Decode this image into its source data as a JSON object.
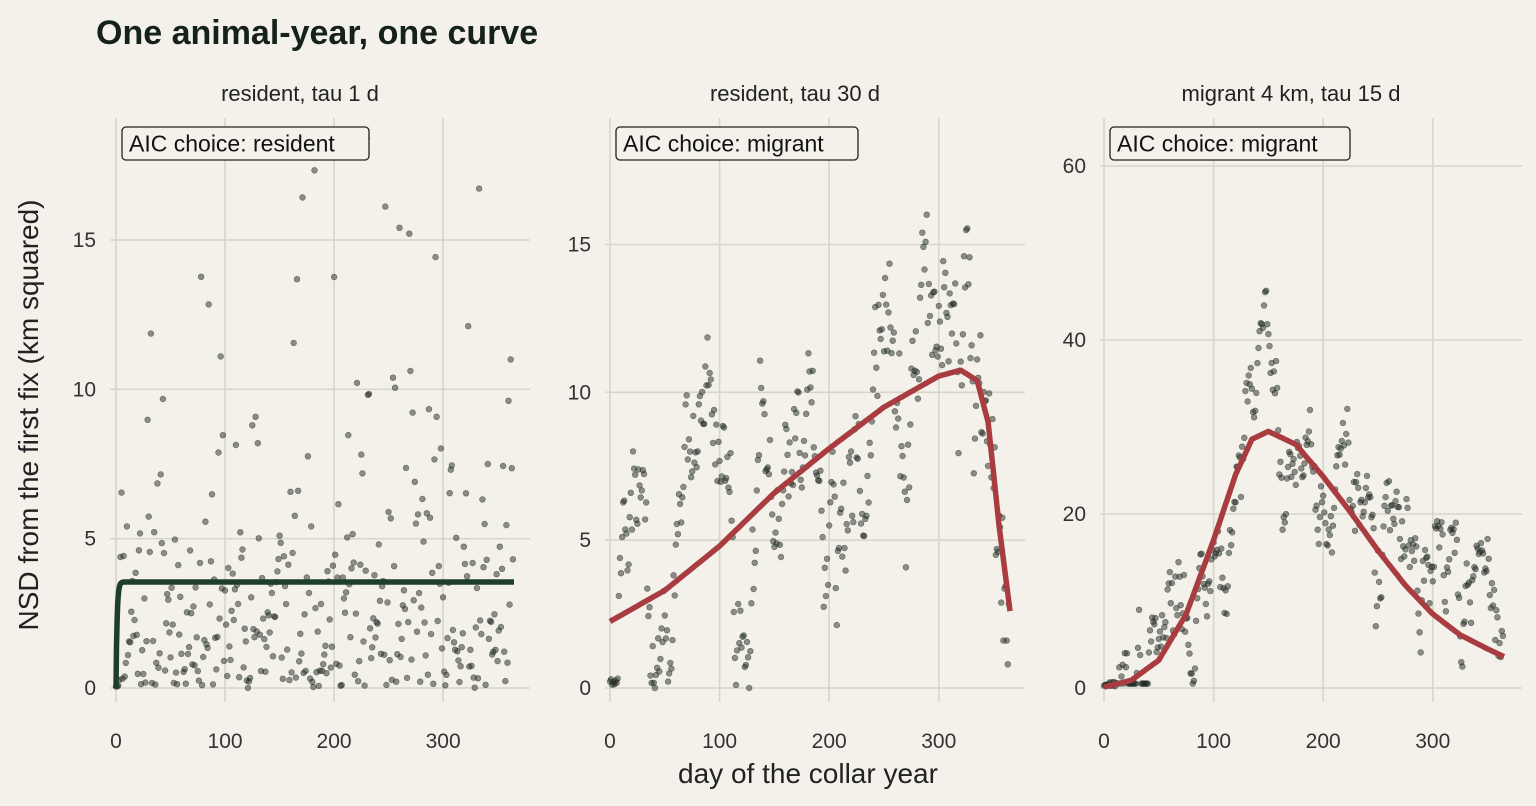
{
  "chart_data": {
    "title": "One animal-year, one curve",
    "xlabel": "day of the collar year",
    "ylabel": "NSD from the first fix (km squared)",
    "type": "scatter",
    "panels": [
      {
        "strip": "resident, tau 1 d",
        "annotation": "AIC choice: resident",
        "xlim": [
          0,
          365
        ],
        "ylim": [
          0,
          18.6
        ],
        "xticks": [
          0,
          100,
          200,
          300
        ],
        "yticks": [
          0,
          5,
          10,
          15
        ],
        "fit": {
          "model": "resident",
          "asymptote": 3.55,
          "tau": 1,
          "color": "#1f3d2b"
        },
        "scatter_model": {
          "kind": "resident",
          "mean": 3.5,
          "tau": 1,
          "max": 18.4,
          "seed": 11
        }
      },
      {
        "strip": "resident, tau 30 d",
        "annotation": "AIC choice: migrant",
        "xlim": [
          0,
          365
        ],
        "ylim": [
          0,
          18.6
        ],
        "xticks": [
          0,
          100,
          200,
          300
        ],
        "yticks": [
          0,
          5,
          10,
          15
        ],
        "fit": {
          "model": "migrant",
          "color": "#a83c40",
          "points": [
            [
              0,
              2.25
            ],
            [
              50,
              3.3
            ],
            [
              100,
              4.8
            ],
            [
              150,
              6.6
            ],
            [
              200,
              8.1
            ],
            [
              250,
              9.5
            ],
            [
              300,
              10.55
            ],
            [
              320,
              10.75
            ],
            [
              335,
              10.4
            ],
            [
              345,
              9.0
            ],
            [
              355,
              5.5
            ],
            [
              365,
              2.6
            ]
          ]
        },
        "scatter_model": {
          "kind": "wander",
          "tau": 30,
          "max": 18.5,
          "seed": 23
        }
      },
      {
        "strip": "migrant 4 km, tau 15 d",
        "annotation": "AIC choice: migrant",
        "xlim": [
          0,
          365
        ],
        "ylim": [
          0,
          61
        ],
        "xticks": [
          0,
          100,
          200,
          300
        ],
        "yticks": [
          0,
          20,
          40,
          60
        ],
        "fit": {
          "model": "migrant",
          "color": "#a83c40",
          "points": [
            [
              0,
              0.1
            ],
            [
              25,
              0.9
            ],
            [
              50,
              3.2
            ],
            [
              75,
              8.5
            ],
            [
              100,
              17.0
            ],
            [
              120,
              24.5
            ],
            [
              135,
              28.6
            ],
            [
              150,
              29.5
            ],
            [
              175,
              28.0
            ],
            [
              200,
              24.3
            ],
            [
              225,
              20.2
            ],
            [
              250,
              15.8
            ],
            [
              275,
              11.8
            ],
            [
              300,
              8.5
            ],
            [
              325,
              6.1
            ],
            [
              350,
              4.5
            ],
            [
              365,
              3.6
            ]
          ]
        },
        "scatter_model": {
          "kind": "migrant",
          "tau": 15,
          "max": 61,
          "seed": 37
        }
      }
    ],
    "point_color": "#1f2a22",
    "grid": true,
    "legend": "none"
  }
}
